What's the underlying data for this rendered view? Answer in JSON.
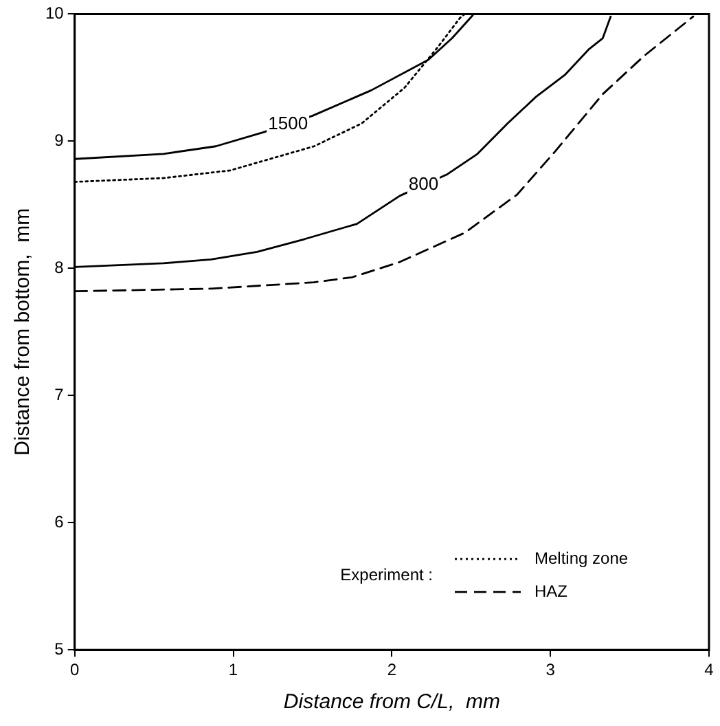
{
  "chart_data": {
    "type": "line",
    "xlabel": "Distance from C/L,  mm",
    "ylabel": "Distance from bottom,  mm",
    "xlim": [
      0,
      4
    ],
    "ylim": [
      5,
      10
    ],
    "xticks": [
      0,
      1,
      2,
      3,
      4
    ],
    "yticks": [
      5,
      6,
      7,
      8,
      9,
      10
    ],
    "grid": false,
    "legend": "bottom right",
    "legend_title": "Experiment :",
    "marker": "none",
    "series": [
      {
        "name": "1500",
        "color": "#000000",
        "line_style": "solid",
        "x": [
          0,
          0.56,
          0.89,
          1.19,
          1.5,
          1.87,
          2.23,
          2.38,
          2.51
        ],
        "values": [
          8.86,
          8.9,
          8.96,
          9.07,
          9.2,
          9.4,
          9.64,
          9.81,
          9.99
        ]
      },
      {
        "name": "800",
        "color": "#000000",
        "line_style": "solid",
        "x": [
          0,
          0.56,
          0.86,
          1.15,
          1.45,
          1.78,
          2.05,
          2.35,
          2.54,
          2.73,
          2.91,
          3.09,
          3.24,
          3.33,
          3.38
        ],
        "values": [
          8.01,
          8.04,
          8.07,
          8.13,
          8.23,
          8.35,
          8.57,
          8.74,
          8.9,
          9.14,
          9.35,
          9.52,
          9.72,
          9.81,
          9.98
        ]
      },
      {
        "name": "Melting zone",
        "color": "#000000",
        "line_style": "dotted",
        "x": [
          0,
          0.56,
          0.98,
          1.51,
          1.81,
          2.08,
          2.29,
          2.43,
          2.46
        ],
        "values": [
          8.68,
          8.71,
          8.77,
          8.96,
          9.14,
          9.42,
          9.74,
          9.97,
          10
        ]
      },
      {
        "name": "HAZ",
        "color": "#000000",
        "line_style": "dashed",
        "x": [
          0,
          0.86,
          1.51,
          1.75,
          2.05,
          2.46,
          2.79,
          3.03,
          3.33,
          3.59,
          3.9
        ],
        "values": [
          7.82,
          7.84,
          7.89,
          7.93,
          8.05,
          8.28,
          8.58,
          8.92,
          9.37,
          9.67,
          9.98
        ]
      }
    ]
  }
}
